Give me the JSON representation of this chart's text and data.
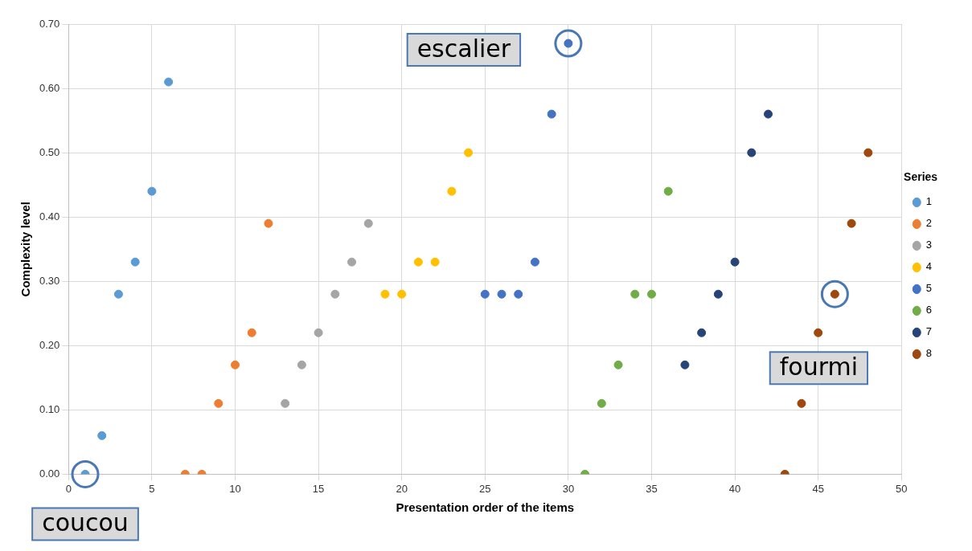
{
  "chart_data": {
    "type": "scatter",
    "xlabel": "Presentation order of the items",
    "ylabel": "Complexity level",
    "legend_title": "Series",
    "xlim": [
      0,
      50
    ],
    "xticks": [
      0,
      5,
      10,
      15,
      20,
      25,
      30,
      35,
      40,
      45,
      50
    ],
    "ylim": [
      0,
      0.7
    ],
    "yticks": [
      {
        "value": 0,
        "label": "0.00"
      },
      {
        "value": 0.1,
        "label": "0.10"
      },
      {
        "value": 0.2,
        "label": "0.20"
      },
      {
        "value": 0.3,
        "label": "0.30"
      },
      {
        "value": 0.4,
        "label": "0.40"
      },
      {
        "value": 0.5,
        "label": "0.50"
      },
      {
        "value": 0.6,
        "label": "0.60"
      },
      {
        "value": 0.7,
        "label": "0.70"
      }
    ],
    "grid": true,
    "legend": "right",
    "marker": "circle",
    "series": [
      {
        "name": "1",
        "color": "#5b9bd5",
        "x": [
          1,
          2,
          3,
          4,
          5,
          6
        ],
        "values": [
          0,
          0.06,
          0.28,
          0.33,
          0.44,
          0.61
        ]
      },
      {
        "name": "2",
        "color": "#ed7d31",
        "x": [
          7,
          8,
          9,
          10,
          11,
          12
        ],
        "values": [
          0,
          0,
          0.11,
          0.17,
          0.22,
          0.39
        ]
      },
      {
        "name": "3",
        "color": "#a5a5a5",
        "x": [
          13,
          14,
          15,
          16,
          17,
          18
        ],
        "values": [
          0.11,
          0.17,
          0.22,
          0.28,
          0.33,
          0.39
        ]
      },
      {
        "name": "4",
        "color": "#ffc000",
        "x": [
          19,
          20,
          21,
          22,
          23,
          24
        ],
        "values": [
          0.28,
          0.28,
          0.33,
          0.33,
          0.44,
          0.5
        ]
      },
      {
        "name": "5",
        "color": "#4472c4",
        "x": [
          25,
          26,
          27,
          28,
          29,
          30
        ],
        "values": [
          0.28,
          0.28,
          0.28,
          0.33,
          0.56,
          0.67
        ]
      },
      {
        "name": "6",
        "color": "#70ad47",
        "x": [
          31,
          32,
          33,
          34,
          35,
          36
        ],
        "values": [
          0,
          0.11,
          0.17,
          0.28,
          0.28,
          0.44
        ]
      },
      {
        "name": "7",
        "color": "#264478",
        "x": [
          37,
          38,
          39,
          40,
          41,
          42
        ],
        "values": [
          0.17,
          0.22,
          0.28,
          0.33,
          0.5,
          0.56
        ]
      },
      {
        "name": "8",
        "color": "#9e480e",
        "x": [
          43,
          44,
          45,
          46,
          47,
          48
        ],
        "values": [
          0,
          0.11,
          0.22,
          0.28,
          0.39,
          0.5
        ]
      }
    ],
    "annotations": [
      {
        "text": "coucou",
        "x": 1,
        "y": 0
      },
      {
        "text": "escalier",
        "x": 30,
        "y": 0.67
      },
      {
        "text": "fourmi",
        "x": 46,
        "y": 0.28
      }
    ]
  }
}
